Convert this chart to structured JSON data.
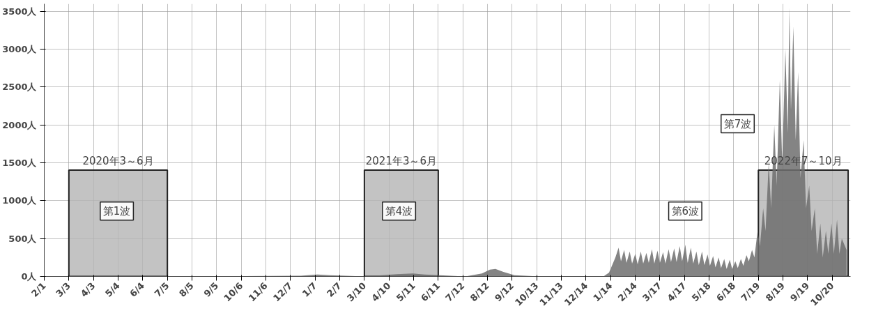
{
  "chart_data": {
    "type": "area",
    "x": [
      "2020-02-01",
      "2020-04-10",
      "2020-08-01",
      "2020-12-20",
      "2021-01-10",
      "2021-01-25",
      "2021-03-10",
      "2021-04-20",
      "2021-05-10",
      "2021-05-25",
      "2021-07-15",
      "2021-08-05",
      "2021-08-15",
      "2021-08-22",
      "2021-09-01",
      "2021-09-15",
      "2021-10-15",
      "2022-01-05",
      "2022-01-12",
      "2022-01-20",
      "2022-01-24",
      "2022-01-27",
      "2022-01-31",
      "2022-02-03",
      "2022-02-07",
      "2022-02-10",
      "2022-02-14",
      "2022-02-17",
      "2022-02-21",
      "2022-02-24",
      "2022-02-28",
      "2022-03-03",
      "2022-03-07",
      "2022-03-10",
      "2022-03-14",
      "2022-03-17",
      "2022-03-21",
      "2022-03-24",
      "2022-03-28",
      "2022-03-31",
      "2022-04-04",
      "2022-04-07",
      "2022-04-11",
      "2022-04-14",
      "2022-04-18",
      "2022-04-21",
      "2022-04-25",
      "2022-04-28",
      "2022-05-02",
      "2022-05-05",
      "2022-05-09",
      "2022-05-12",
      "2022-05-16",
      "2022-05-19",
      "2022-05-23",
      "2022-05-26",
      "2022-05-30",
      "2022-06-02",
      "2022-06-06",
      "2022-06-09",
      "2022-06-13",
      "2022-06-16",
      "2022-06-20",
      "2022-06-23",
      "2022-06-27",
      "2022-06-30",
      "2022-07-04",
      "2022-07-07",
      "2022-07-11",
      "2022-07-14",
      "2022-07-18",
      "2022-07-21",
      "2022-07-25",
      "2022-07-28",
      "2022-08-01",
      "2022-08-04",
      "2022-08-08",
      "2022-08-11",
      "2022-08-15",
      "2022-08-18",
      "2022-08-22",
      "2022-08-25",
      "2022-08-27",
      "2022-08-29",
      "2022-09-01",
      "2022-09-04",
      "2022-09-07",
      "2022-09-10",
      "2022-09-14",
      "2022-09-17",
      "2022-09-21",
      "2022-09-24",
      "2022-09-28",
      "2022-10-01",
      "2022-10-05",
      "2022-10-08",
      "2022-10-12",
      "2022-10-15",
      "2022-10-19",
      "2022-10-22",
      "2022-10-26",
      "2022-10-29",
      "2022-11-01",
      "2022-11-07"
    ],
    "series": [
      {
        "color": "#6e6e6e",
        "values": [
          0,
          0,
          0,
          10,
          25,
          15,
          0,
          30,
          40,
          25,
          0,
          40,
          90,
          100,
          60,
          15,
          0,
          0,
          50,
          250,
          380,
          200,
          350,
          180,
          330,
          170,
          300,
          160,
          330,
          170,
          310,
          180,
          360,
          170,
          340,
          180,
          320,
          170,
          360,
          190,
          370,
          190,
          400,
          200,
          420,
          180,
          380,
          170,
          330,
          150,
          330,
          150,
          290,
          140,
          270,
          120,
          250,
          110,
          230,
          100,
          220,
          100,
          200,
          110,
          230,
          140,
          280,
          200,
          350,
          250,
          600,
          400,
          900,
          600,
          1500,
          900,
          2000,
          1200,
          2600,
          1500,
          3000,
          1900,
          3550,
          2200,
          3300,
          1800,
          2700,
          1300,
          1800,
          900,
          1200,
          600,
          900,
          300,
          700,
          250,
          600,
          300,
          700,
          300,
          750,
          300,
          500,
          350
        ]
      }
    ],
    "xlim": [
      "2020-02-01",
      "2022-11-12"
    ],
    "xticks": [
      {
        "value": "2020-02-01",
        "label": "2/1"
      },
      {
        "value": "2020-03-03",
        "label": "3/3"
      },
      {
        "value": "2020-04-03",
        "label": "4/3"
      },
      {
        "value": "2020-05-04",
        "label": "5/4"
      },
      {
        "value": "2020-06-04",
        "label": "6/4"
      },
      {
        "value": "2020-07-05",
        "label": "7/5"
      },
      {
        "value": "2020-08-05",
        "label": "8/5"
      },
      {
        "value": "2020-09-05",
        "label": "9/5"
      },
      {
        "value": "2020-10-06",
        "label": "10/6"
      },
      {
        "value": "2020-11-06",
        "label": "11/6"
      },
      {
        "value": "2020-12-07",
        "label": "12/7"
      },
      {
        "value": "2021-01-07",
        "label": "1/7"
      },
      {
        "value": "2021-02-07",
        "label": "2/7"
      },
      {
        "value": "2021-03-10",
        "label": "3/10"
      },
      {
        "value": "2021-04-10",
        "label": "4/10"
      },
      {
        "value": "2021-05-11",
        "label": "5/11"
      },
      {
        "value": "2021-06-11",
        "label": "6/11"
      },
      {
        "value": "2021-07-12",
        "label": "7/12"
      },
      {
        "value": "2021-08-12",
        "label": "8/12"
      },
      {
        "value": "2021-09-12",
        "label": "9/12"
      },
      {
        "value": "2021-10-13",
        "label": "10/13"
      },
      {
        "value": "2021-11-13",
        "label": "11/13"
      },
      {
        "value": "2021-12-14",
        "label": "12/14"
      },
      {
        "value": "2022-01-14",
        "label": "1/14"
      },
      {
        "value": "2022-02-14",
        "label": "2/14"
      },
      {
        "value": "2022-03-17",
        "label": "3/17"
      },
      {
        "value": "2022-04-17",
        "label": "4/17"
      },
      {
        "value": "2022-05-18",
        "label": "5/18"
      },
      {
        "value": "2022-06-18",
        "label": "6/18"
      },
      {
        "value": "2022-07-19",
        "label": "7/19"
      },
      {
        "value": "2022-08-19",
        "label": "8/19"
      },
      {
        "value": "2022-09-19",
        "label": "9/19"
      },
      {
        "value": "2022-10-20",
        "label": "10/20"
      }
    ],
    "ylim": [
      0,
      3600
    ],
    "yticks": [
      {
        "value": 0,
        "label": "0人"
      },
      {
        "value": 500,
        "label": "500人"
      },
      {
        "value": 1000,
        "label": "1000人"
      },
      {
        "value": 1500,
        "label": "1500人"
      },
      {
        "value": 2000,
        "label": "2000人"
      },
      {
        "value": 2500,
        "label": "2500人"
      },
      {
        "value": 3000,
        "label": "3000人"
      },
      {
        "value": 3500,
        "label": "3500人"
      }
    ],
    "grid": true,
    "bands": [
      {
        "axis": "x",
        "from": "2020-03-03",
        "to": "2020-07-05",
        "label": "2020年3～6月",
        "color": "#b4b4b4"
      },
      {
        "axis": "x",
        "from": "2021-03-10",
        "to": "2021-06-11",
        "label": "2021年3～6月",
        "color": "#b4b4b4"
      },
      {
        "axis": "x",
        "from": "2022-07-19",
        "to": "2022-11-09",
        "label": "2022年7～10月",
        "color": "#b4b4b4"
      }
    ],
    "annotations": [
      "第1波",
      "第4波",
      "第6波",
      "第7波"
    ]
  }
}
